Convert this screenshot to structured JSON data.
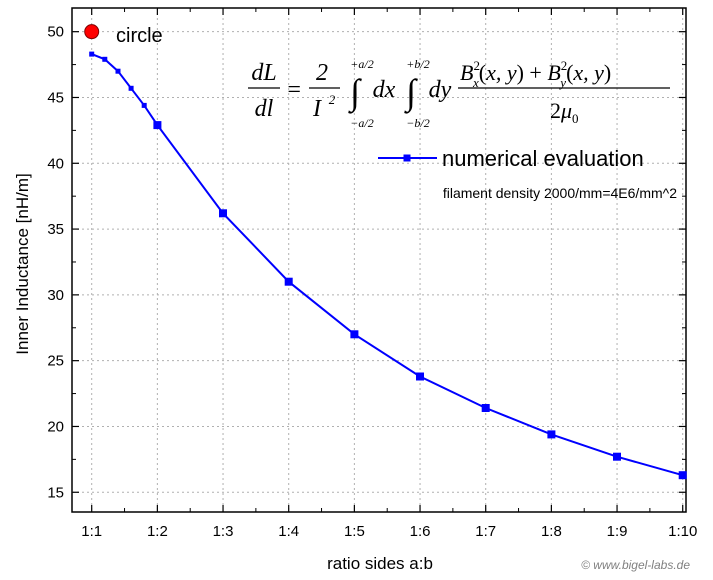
{
  "chart_data": {
    "type": "line",
    "xlabel": "ratio sides a:b",
    "ylabel": "Inner Inductance [nH/m]",
    "xlim": [
      0.7,
      10.05
    ],
    "ylim": [
      13.5,
      51.8
    ],
    "x_ticks": [
      1,
      2,
      3,
      4,
      5,
      6,
      7,
      8,
      9,
      10
    ],
    "x_tick_labels": [
      "1:1",
      "1:2",
      "1:3",
      "1:4",
      "1:5",
      "1:6",
      "1:7",
      "1:8",
      "1:9",
      "1:10"
    ],
    "y_ticks": [
      15,
      20,
      25,
      30,
      35,
      40,
      45,
      50
    ],
    "y_tick_labels": [
      "15",
      "20",
      "25",
      "30",
      "35",
      "40",
      "45",
      "50"
    ],
    "series": [
      {
        "name": "numerical evaluation",
        "color": "#0000ff",
        "marker": "square",
        "x": [
          1.0,
          1.2,
          1.4,
          1.6,
          1.8,
          2,
          3,
          4,
          5,
          6,
          7,
          8,
          9,
          10
        ],
        "y": [
          48.3,
          47.9,
          47.0,
          45.7,
          44.4,
          42.9,
          36.2,
          31.0,
          27.0,
          23.8,
          21.4,
          19.4,
          17.7,
          16.3
        ]
      }
    ],
    "special_point": {
      "label": "circle",
      "x": 1.0,
      "y": 50.0,
      "color": "#ff0000"
    },
    "annotation": "filament density 2000/mm=4E6/mm^2",
    "legend_position": "top-right"
  },
  "formula": {
    "lhs_num": "dL",
    "lhs_den": "dl",
    "eq": "=",
    "coef_num": "2",
    "coef_den": "I",
    "coef_den_exp": "2",
    "int1_upper": "+a/2",
    "int1_lower": "−a/2",
    "int1_var": "dx",
    "int2_upper": "+b/2",
    "int2_lower": "−b/2",
    "int2_var": "dy",
    "integrand_num": "B_x^2(x, y) + B_y^2(x, y)",
    "integrand_den": "2μ_0"
  },
  "copyright": "© www.bigel-labs.de"
}
